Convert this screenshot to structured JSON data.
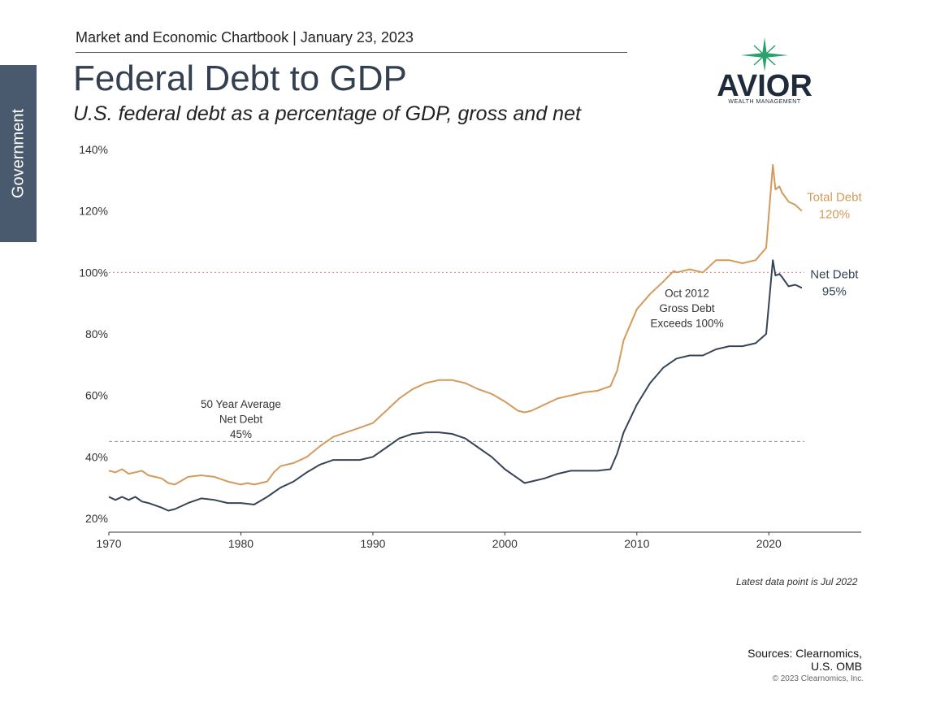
{
  "side_tab": "Government",
  "header": "Market and Economic Chartbook | January 23, 2023",
  "title": "Federal Debt to GDP",
  "subtitle": "U.S. federal debt as a percentage of GDP, gross and net",
  "logo": {
    "name": "AVIOR",
    "tagline": "WEALTH MANAGEMENT",
    "color": "#1f2b3a",
    "accent": "#2aa06a"
  },
  "latest_note": "Latest data point is Jul 2022",
  "sources": [
    "Sources: Clearnomics,",
    "U.S. OMB"
  ],
  "copyright": "© 2023 Clearnomics, Inc.",
  "chart_data": {
    "type": "line",
    "title": "Federal Debt to GDP",
    "xlabel": "",
    "ylabel": "",
    "xlim": [
      1970,
      2027
    ],
    "ylim": [
      17,
      140
    ],
    "x_ticks": [
      1970,
      1980,
      1990,
      2000,
      2010,
      2020
    ],
    "y_ticks": [
      20,
      40,
      60,
      80,
      100,
      120,
      140
    ],
    "y_tick_labels": [
      "20%",
      "40%",
      "60%",
      "80%",
      "100%",
      "120%",
      "140%"
    ],
    "grid": false,
    "reference_lines": [
      {
        "y": 100,
        "color": "#e07a7a",
        "style": "dotted"
      },
      {
        "y": 45,
        "color": "#8a9099",
        "style": "dashed"
      }
    ],
    "series": [
      {
        "name": "Total Debt",
        "color": "#d49a5c",
        "end_label": [
          "Total Debt",
          "120%"
        ],
        "points": [
          [
            1970,
            35.5
          ],
          [
            1970.5,
            35
          ],
          [
            1971,
            36
          ],
          [
            1971.5,
            34.5
          ],
          [
            1972,
            35
          ],
          [
            1972.5,
            35.5
          ],
          [
            1973,
            34
          ],
          [
            1974,
            33
          ],
          [
            1974.5,
            31.5
          ],
          [
            1975,
            31
          ],
          [
            1976,
            33.5
          ],
          [
            1977,
            34
          ],
          [
            1978,
            33.5
          ],
          [
            1979,
            32
          ],
          [
            1980,
            31
          ],
          [
            1980.5,
            31.5
          ],
          [
            1981,
            31
          ],
          [
            1982,
            32
          ],
          [
            1982.5,
            35
          ],
          [
            1983,
            37
          ],
          [
            1984,
            38
          ],
          [
            1985,
            40
          ],
          [
            1986,
            43.5
          ],
          [
            1987,
            46.5
          ],
          [
            1988,
            48
          ],
          [
            1989,
            49.5
          ],
          [
            1990,
            51
          ],
          [
            1991,
            55
          ],
          [
            1992,
            59
          ],
          [
            1993,
            62
          ],
          [
            1994,
            64
          ],
          [
            1995,
            65
          ],
          [
            1996,
            65
          ],
          [
            1997,
            64
          ],
          [
            1998,
            62
          ],
          [
            1999,
            60.5
          ],
          [
            2000,
            58
          ],
          [
            2001,
            55
          ],
          [
            2001.5,
            54.5
          ],
          [
            2002,
            55
          ],
          [
            2003,
            57
          ],
          [
            2004,
            59
          ],
          [
            2005,
            60
          ],
          [
            2006,
            61
          ],
          [
            2007,
            61.5
          ],
          [
            2008,
            63
          ],
          [
            2008.5,
            68
          ],
          [
            2009,
            78
          ],
          [
            2010,
            88
          ],
          [
            2011,
            93
          ],
          [
            2012,
            97
          ],
          [
            2012.8,
            100.5
          ],
          [
            2013,
            100
          ],
          [
            2014,
            101
          ],
          [
            2015,
            100
          ],
          [
            2016,
            104
          ],
          [
            2017,
            104
          ],
          [
            2018,
            103
          ],
          [
            2019,
            104
          ],
          [
            2019.8,
            108
          ],
          [
            2020.3,
            135
          ],
          [
            2020.5,
            127
          ],
          [
            2020.8,
            128
          ],
          [
            2021,
            126
          ],
          [
            2021.5,
            123
          ],
          [
            2022,
            122
          ],
          [
            2022.5,
            120
          ]
        ]
      },
      {
        "name": "Net Debt",
        "color": "#364556",
        "end_label": [
          "Net Debt",
          "95%"
        ],
        "points": [
          [
            1970,
            27
          ],
          [
            1970.5,
            26
          ],
          [
            1971,
            27
          ],
          [
            1971.5,
            26
          ],
          [
            1972,
            27
          ],
          [
            1972.5,
            25.5
          ],
          [
            1973,
            25
          ],
          [
            1974,
            23.5
          ],
          [
            1974.5,
            22.5
          ],
          [
            1975,
            23
          ],
          [
            1976,
            25
          ],
          [
            1977,
            26.5
          ],
          [
            1978,
            26
          ],
          [
            1979,
            25
          ],
          [
            1980,
            25
          ],
          [
            1981,
            24.5
          ],
          [
            1982,
            27
          ],
          [
            1983,
            30
          ],
          [
            1984,
            32
          ],
          [
            1985,
            35
          ],
          [
            1986,
            37.5
          ],
          [
            1987,
            39
          ],
          [
            1988,
            39
          ],
          [
            1989,
            39
          ],
          [
            1990,
            40
          ],
          [
            1991,
            43
          ],
          [
            1992,
            46
          ],
          [
            1993,
            47.5
          ],
          [
            1994,
            48
          ],
          [
            1995,
            48
          ],
          [
            1996,
            47.5
          ],
          [
            1997,
            46
          ],
          [
            1998,
            43
          ],
          [
            1999,
            40
          ],
          [
            2000,
            36
          ],
          [
            2001,
            33
          ],
          [
            2001.5,
            31.5
          ],
          [
            2002,
            32
          ],
          [
            2003,
            33
          ],
          [
            2004,
            34.5
          ],
          [
            2005,
            35.5
          ],
          [
            2006,
            35.5
          ],
          [
            2007,
            35.5
          ],
          [
            2008,
            36
          ],
          [
            2008.5,
            41
          ],
          [
            2009,
            48
          ],
          [
            2010,
            57
          ],
          [
            2011,
            64
          ],
          [
            2012,
            69
          ],
          [
            2013,
            72
          ],
          [
            2014,
            73
          ],
          [
            2015,
            73
          ],
          [
            2016,
            75
          ],
          [
            2017,
            76
          ],
          [
            2018,
            76
          ],
          [
            2019,
            77
          ],
          [
            2019.8,
            80
          ],
          [
            2020.3,
            104
          ],
          [
            2020.5,
            99
          ],
          [
            2020.8,
            99.5
          ],
          [
            2021,
            98.5
          ],
          [
            2021.5,
            95.5
          ],
          [
            2022,
            96
          ],
          [
            2022.5,
            95
          ]
        ]
      }
    ],
    "annotations": [
      {
        "lines": [
          "Oct 2012",
          "Gross Debt",
          "Exceeds 100%"
        ],
        "x": 2013.8,
        "y": 92
      },
      {
        "lines": [
          "50 Year Average",
          "Net Debt",
          "45%"
        ],
        "x": 1980,
        "y": 56
      }
    ]
  }
}
